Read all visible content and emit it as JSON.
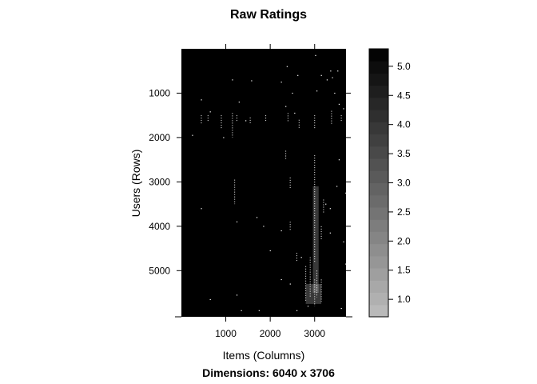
{
  "chart_data": {
    "type": "heatmap",
    "title": "Raw Ratings",
    "subtitle": "Dimensions: 6040 x 3706",
    "xlabel": "Items (Columns)",
    "ylabel": "Users (Rows)",
    "xlim": [
      1,
      3706
    ],
    "ylim": [
      6040,
      1
    ],
    "x_ticks": [
      1000,
      2000,
      3000
    ],
    "y_ticks": [
      1000,
      2000,
      3000,
      4000,
      5000
    ],
    "background_value": 5.3,
    "colorbar": {
      "range": [
        0.7,
        5.3
      ],
      "ticks": [
        1.0,
        1.5,
        2.0,
        2.5,
        3.0,
        3.5,
        4.0,
        4.5,
        5.0
      ],
      "color_low": "#bdbdbd",
      "color_high": "#000000"
    },
    "series": [
      {
        "type": "points",
        "color": "#ffffff",
        "points": [
          [
            3020,
            150
          ],
          [
            2380,
            400
          ],
          [
            2620,
            600
          ],
          [
            3150,
            600
          ],
          [
            3400,
            650
          ],
          [
            3280,
            700
          ],
          [
            2250,
            750
          ],
          [
            1150,
            700
          ],
          [
            1580,
            720
          ],
          [
            2500,
            1000
          ],
          [
            3050,
            950
          ],
          [
            3360,
            500
          ],
          [
            3450,
            1000
          ],
          [
            450,
            1150
          ],
          [
            1300,
            1200
          ],
          [
            2350,
            1300
          ],
          [
            3550,
            1250
          ],
          [
            3650,
            1350
          ],
          [
            3550,
            2500
          ],
          [
            3500,
            3100
          ],
          [
            3350,
            3600
          ],
          [
            1700,
            3800
          ],
          [
            3250,
            3500
          ],
          [
            1850,
            4000
          ],
          [
            3350,
            4150
          ],
          [
            3650,
            4350
          ],
          [
            2000,
            4550
          ],
          [
            3700,
            4850
          ],
          [
            1750,
            5900
          ],
          [
            2850,
            5800
          ],
          [
            3600,
            5850
          ],
          [
            650,
            5650
          ],
          [
            1250,
            5550
          ],
          [
            1350,
            5900
          ],
          [
            3520,
            500
          ],
          [
            950,
            2000
          ],
          [
            450,
            3600
          ],
          [
            2700,
            4700
          ],
          [
            2250,
            5200
          ],
          [
            2450,
            5300
          ],
          [
            650,
            1420
          ],
          [
            1450,
            1620
          ],
          [
            2550,
            1450
          ],
          [
            2600,
            5900
          ],
          [
            2250,
            4100
          ],
          [
            3700,
            3250
          ],
          [
            1250,
            3900
          ],
          [
            250,
            1950
          ]
        ]
      },
      {
        "type": "vertical-segments",
        "color": "#ffffff",
        "segments": [
          [
            450,
            1500,
            1700
          ],
          [
            600,
            1500,
            1650
          ],
          [
            900,
            1500,
            1800
          ],
          [
            1150,
            1450,
            2000
          ],
          [
            1250,
            1500,
            1650
          ],
          [
            1550,
            1550,
            1700
          ],
          [
            1900,
            1500,
            1650
          ],
          [
            2400,
            1450,
            1650
          ],
          [
            2650,
            1600,
            1800
          ],
          [
            3000,
            1500,
            1800
          ],
          [
            3380,
            1400,
            1700
          ],
          [
            3600,
            1500,
            1650
          ],
          [
            1200,
            2950,
            3500
          ],
          [
            2350,
            2300,
            2500
          ],
          [
            2450,
            2900,
            3150
          ],
          [
            2450,
            3900,
            4100
          ],
          [
            2600,
            4600,
            4800
          ],
          [
            2800,
            4900,
            5700
          ],
          [
            2900,
            4700,
            5600
          ],
          [
            3000,
            2400,
            4800
          ],
          [
            3000,
            5200,
            5800
          ],
          [
            3050,
            5000,
            5600
          ],
          [
            3150,
            5200,
            5700
          ],
          [
            3200,
            3400,
            3700
          ],
          [
            3150,
            4000,
            4300
          ]
        ]
      },
      {
        "type": "filled-band",
        "color": "#ffffff",
        "opacity": 0.22,
        "bands": [
          [
            2960,
            3090,
            3100,
            5500
          ],
          [
            2800,
            3150,
            5300,
            5750
          ]
        ]
      }
    ]
  }
}
